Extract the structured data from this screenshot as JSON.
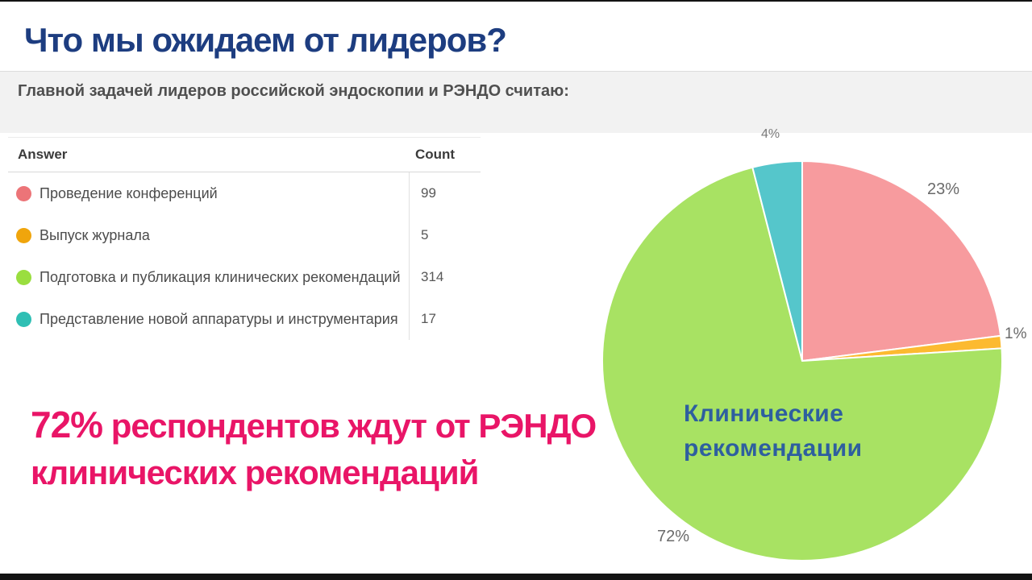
{
  "page": {
    "title": "Что мы ожидаем от лидеров?",
    "question": "Главной задачей лидеров российской эндоскопии и РЭНДО считаю:"
  },
  "table": {
    "headers": {
      "answer": "Answer",
      "count": "Count"
    },
    "rows": [
      {
        "label": "Проведение конференций",
        "count": "99",
        "color": "#ec7478"
      },
      {
        "label": "Выпуск журнала",
        "count": "5",
        "color": "#f0a50c"
      },
      {
        "label": "Подготовка и публикация клинических рекомендаций",
        "count": "314",
        "color": "#9ade3f"
      },
      {
        "label": "Представление новой аппаратуры и инструментария",
        "count": "17",
        "color": "#2fbfb4"
      }
    ]
  },
  "callout": {
    "highlight": "72%",
    "line1_rest": " респондентов ждут от РЭНДО",
    "line2": "клинических рекомендаций",
    "color": "#e91567"
  },
  "chart_data": {
    "type": "pie",
    "categories": [
      "Проведение конференций",
      "Выпуск журнала",
      "Подготовка и публикация клинических рекомендаций",
      "Представление новой аппаратуры и инструментария"
    ],
    "values": [
      23,
      1,
      72,
      4
    ],
    "counts": [
      99,
      5,
      314,
      17
    ],
    "colors": [
      "#f79b9e",
      "#fcba30",
      "#a8e263",
      "#55c6cb"
    ],
    "labels": [
      "23%",
      "1%",
      "72%",
      "4%"
    ],
    "title": "",
    "start_angle_deg": 0,
    "direction": "clockwise",
    "annotation": {
      "line1": "Клинические",
      "line2": "рекомендации",
      "color": "#2e5f9f"
    }
  }
}
